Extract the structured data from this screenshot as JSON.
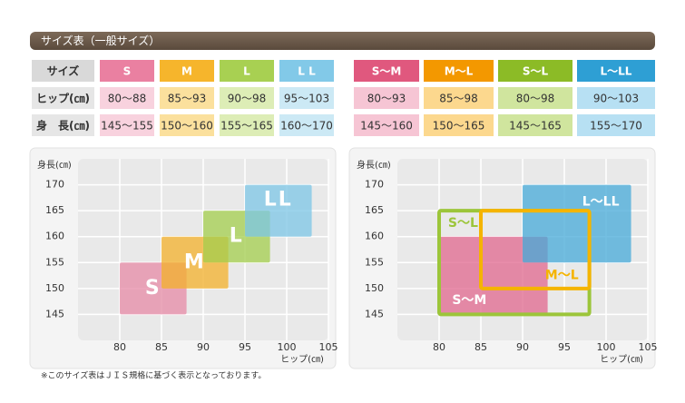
{
  "header": {
    "title": "サイズ表（一般サイズ）"
  },
  "size_table": {
    "headers": [
      "サイズ",
      "S",
      "M",
      "L",
      "L L"
    ],
    "rows": [
      [
        "ヒップ(㎝)",
        "80～88",
        "85～93",
        "90～98",
        "95～103"
      ],
      [
        "身　長(㎝)",
        "145～155",
        "150～160",
        "155～165",
        "160～170"
      ]
    ],
    "header_colors": [
      "#d9d9d9",
      "#ea80a1",
      "#f6b52c",
      "#a8d052",
      "#82c9e8"
    ],
    "cell_colors": [
      "#e6e6e6",
      "#f8d2de",
      "#fbe09d",
      "#ddedb6",
      "#cce9f5"
    ]
  },
  "combo_table": {
    "headers": [
      "S～M",
      "M～L",
      "S～L",
      "L～LL"
    ],
    "rows": [
      [
        "80～93",
        "85～98",
        "80～98",
        "90～103"
      ],
      [
        "145～160",
        "150～165",
        "145～165",
        "155～170"
      ]
    ],
    "header_colors": [
      "#e0587e",
      "#f39800",
      "#8cbb26",
      "#2e9fd4"
    ],
    "cell_colors": [
      "#f6c5d4",
      "#fcd88e",
      "#d0e59e",
      "#b7e0f3"
    ]
  },
  "chart_data": [
    {
      "type": "rect",
      "y_label": "身長(㎝)",
      "x_label": "ヒップ(㎝)",
      "xlim": [
        75,
        105
      ],
      "ylim": [
        140,
        175
      ],
      "xticks": [
        80,
        85,
        90,
        95,
        100,
        105
      ],
      "yticks": [
        145,
        150,
        155,
        160,
        165,
        170
      ],
      "grid": true,
      "series": [
        {
          "name": "S",
          "color": "#e589a6",
          "style": "fill",
          "x": [
            80,
            88
          ],
          "y": [
            145,
            155
          ]
        },
        {
          "name": "M",
          "color": "#f3b02b",
          "style": "fill",
          "x": [
            85,
            93
          ],
          "y": [
            150,
            160
          ]
        },
        {
          "name": "L",
          "color": "#a3cd4c",
          "style": "fill",
          "x": [
            90,
            98
          ],
          "y": [
            155,
            165
          ]
        },
        {
          "name": "LL",
          "color": "#7cc5e5",
          "style": "fill",
          "x": [
            95,
            103
          ],
          "y": [
            160,
            170
          ]
        }
      ]
    },
    {
      "type": "rect",
      "y_label": "身長(㎝)",
      "x_label": "ヒップ(㎝)",
      "xlim": [
        75,
        105
      ],
      "ylim": [
        140,
        175
      ],
      "xticks": [
        80,
        85,
        90,
        95,
        100,
        105
      ],
      "yticks": [
        145,
        150,
        155,
        160,
        165,
        170
      ],
      "grid": true,
      "series": [
        {
          "name": "S～M",
          "color": "#e0678e",
          "style": "fill",
          "x": [
            80,
            93
          ],
          "y": [
            145,
            160
          ]
        },
        {
          "name": "L～LL",
          "color": "#45aad8",
          "style": "fill",
          "x": [
            90,
            103
          ],
          "y": [
            155,
            170
          ]
        },
        {
          "name": "S～L",
          "color": "#9cc53a",
          "style": "outline",
          "x": [
            80,
            98
          ],
          "y": [
            145,
            165
          ]
        },
        {
          "name": "M～L",
          "color": "#f5b400",
          "style": "outline",
          "x": [
            85,
            98
          ],
          "y": [
            150,
            165
          ]
        }
      ]
    }
  ],
  "footnote": "※このサイズ表はＪＩＳ規格に基づく表示となっております。"
}
